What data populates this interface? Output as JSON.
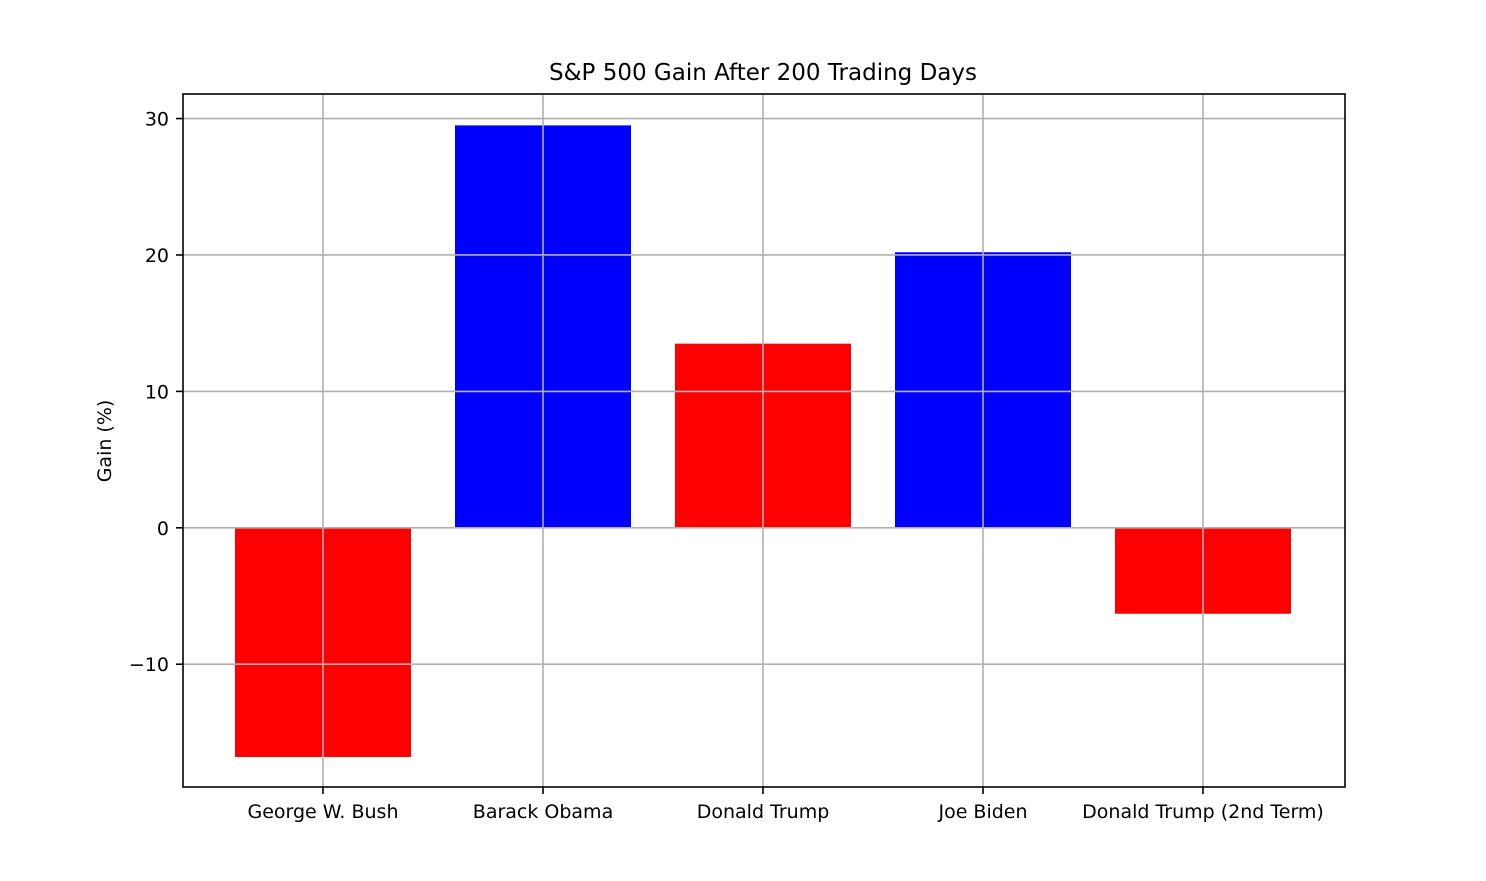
{
  "chart_data": {
    "type": "bar",
    "title": "S&P 500 Gain After 200 Trading Days",
    "xlabel": "",
    "ylabel": "Gain (%)",
    "categories": [
      "George W. Bush",
      "Barack Obama",
      "Donald Trump",
      "Joe Biden",
      "Donald Trump (2nd Term)"
    ],
    "values": [
      -16.8,
      29.5,
      13.5,
      20.2,
      -6.3
    ],
    "bar_colors": [
      "#ff0000",
      "#0000ff",
      "#ff0000",
      "#0000ff",
      "#ff0000"
    ],
    "ylim": [
      -19,
      31.8
    ],
    "yticks": [
      30,
      20,
      10,
      0,
      -10
    ],
    "ytick_labels": [
      "30",
      "20",
      "10",
      "0",
      "−10"
    ],
    "grid": true,
    "grid_color": "#b0b0b0",
    "legend": null
  }
}
